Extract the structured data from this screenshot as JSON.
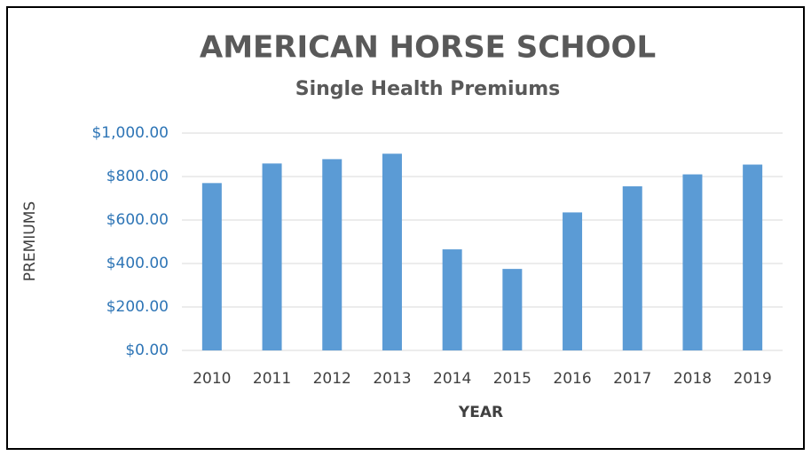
{
  "chart_data": {
    "type": "bar",
    "title": "AMERICAN HORSE SCHOOL",
    "subtitle": "Single Health Premiums",
    "x_label": "YEAR",
    "y_label": "PREMIUMS",
    "categories": [
      "2010",
      "2011",
      "2012",
      "2013",
      "2014",
      "2015",
      "2016",
      "2017",
      "2018",
      "2019"
    ],
    "values": [
      770,
      860,
      880,
      905,
      465,
      375,
      635,
      755,
      810,
      855
    ],
    "color": "#5b9bd5",
    "ylim": [
      0,
      1000
    ],
    "yticks": [
      {
        "value": 0,
        "label": "$0.00"
      },
      {
        "value": 200,
        "label": "$200.00"
      },
      {
        "value": 400,
        "label": "$400.00"
      },
      {
        "value": 600,
        "label": "$600.00"
      },
      {
        "value": 800,
        "label": "$800.00"
      },
      {
        "value": 1000,
        "label": "$1,000.00"
      }
    ],
    "grid": true
  }
}
